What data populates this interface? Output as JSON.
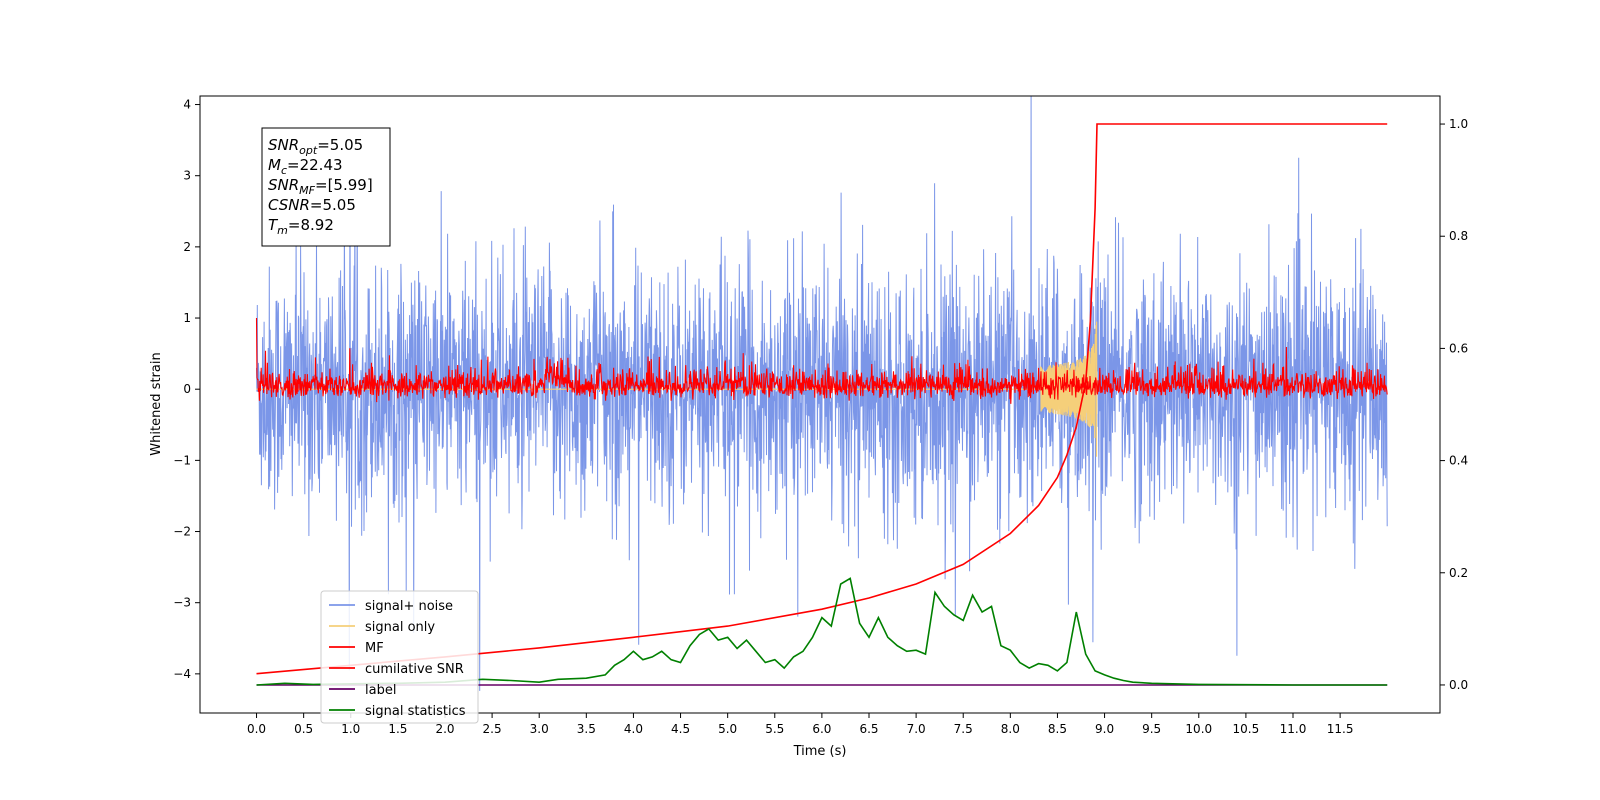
{
  "chart_data": {
    "type": "line",
    "xlabel": "Time (s)",
    "ylabel": "Whitened strain",
    "xlim": [
      -0.6,
      12.56
    ],
    "ylim": [
      -4.55,
      4.12
    ],
    "y2lim": [
      -0.05,
      1.05
    ],
    "x_ticks": [
      0.0,
      0.5,
      1.0,
      1.5,
      2.0,
      2.5,
      3.0,
      3.5,
      4.0,
      4.5,
      5.0,
      5.5,
      6.0,
      6.5,
      7.0,
      7.5,
      8.0,
      8.5,
      9.0,
      9.5,
      10.0,
      10.5,
      11.0,
      11.5
    ],
    "x_tick_labels": [
      "0.0",
      "0.5",
      "1.0",
      "1.5",
      "2.0",
      "2.5",
      "3.0",
      "3.5",
      "4.0",
      "4.5",
      "5.0",
      "5.5",
      "6.0",
      "6.5",
      "7.0",
      "7.5",
      "8.0",
      "8.5",
      "9.0",
      "9.5",
      "10.0",
      "10.5",
      "11.0",
      "11.5"
    ],
    "y_ticks": [
      4,
      3,
      2,
      1,
      0,
      -1,
      -2,
      -3,
      -4
    ],
    "y_tick_labels": [
      "4",
      "3",
      "2",
      "1",
      "0",
      "−1",
      "−2",
      "−3",
      "−4"
    ],
    "y2_ticks": [
      1.0,
      0.8,
      0.6,
      0.4,
      0.2,
      0.0
    ],
    "y2_tick_labels": [
      "1.0",
      "0.8",
      "0.6",
      "0.4",
      "0.2",
      "0.0"
    ],
    "grid": false,
    "legend_position": "lower-left",
    "info_box": {
      "lines": [
        {
          "sym": "SNR",
          "sub": "opt",
          "text": "=5.05"
        },
        {
          "sym": "M",
          "sub": "c",
          "text": "=22.43"
        },
        {
          "sym": "SNR",
          "sub": "MF",
          "text": "=[5.99]"
        },
        {
          "sym": "CSNR",
          "sub": "",
          "text": "=5.05"
        },
        {
          "sym": "T",
          "sub": "m",
          "text": "=8.92"
        }
      ]
    },
    "series": [
      {
        "name": "signal+ noise",
        "color": "#7b96e8",
        "axis": "left",
        "style": "noise",
        "amplitude_sigma": 0.85,
        "x_range": [
          0.0,
          12.0
        ]
      },
      {
        "name": "signal only",
        "color": "#f5cf7a",
        "axis": "left",
        "style": "chirp",
        "peak_time": 8.92,
        "peak_amplitude": 0.9
      },
      {
        "name": "MF",
        "color": "#ff0000",
        "axis": "left",
        "style": "noise",
        "amplitude_sigma": 0.12,
        "x_range": [
          0.0,
          12.0
        ]
      },
      {
        "name": "cumilative SNR",
        "color": "#ff0000",
        "axis": "right",
        "x": [
          0.0,
          1.0,
          2.0,
          3.0,
          4.0,
          5.0,
          6.0,
          6.5,
          7.0,
          7.5,
          8.0,
          8.3,
          8.5,
          8.6,
          8.7,
          8.8,
          8.85,
          8.9,
          8.92,
          12.0
        ],
        "values": [
          0.02,
          0.035,
          0.05,
          0.066,
          0.085,
          0.105,
          0.135,
          0.155,
          0.18,
          0.215,
          0.27,
          0.32,
          0.37,
          0.41,
          0.46,
          0.54,
          0.65,
          0.85,
          1.0,
          1.0
        ]
      },
      {
        "name": "label",
        "color": "#660066",
        "axis": "right",
        "x": [
          0.0,
          12.0
        ],
        "values": [
          0.0,
          0.0
        ]
      },
      {
        "name": "signal statistics",
        "color": "#008000",
        "axis": "right",
        "x": [
          0.0,
          0.3,
          0.6,
          1.0,
          1.5,
          2.0,
          2.4,
          2.7,
          3.0,
          3.2,
          3.5,
          3.7,
          3.8,
          3.9,
          4.0,
          4.1,
          4.2,
          4.3,
          4.4,
          4.5,
          4.6,
          4.7,
          4.8,
          4.9,
          5.0,
          5.1,
          5.2,
          5.3,
          5.4,
          5.5,
          5.6,
          5.7,
          5.8,
          5.9,
          6.0,
          6.1,
          6.2,
          6.3,
          6.4,
          6.5,
          6.6,
          6.7,
          6.8,
          6.9,
          7.0,
          7.1,
          7.2,
          7.3,
          7.4,
          7.5,
          7.6,
          7.7,
          7.8,
          7.9,
          8.0,
          8.1,
          8.2,
          8.3,
          8.4,
          8.5,
          8.6,
          8.7,
          8.8,
          8.9,
          9.0,
          9.1,
          9.2,
          9.3,
          9.5,
          10.0,
          11.0,
          12.0
        ],
        "values": [
          0.0,
          0.003,
          0.001,
          0.002,
          0.003,
          0.005,
          0.01,
          0.008,
          0.005,
          0.01,
          0.012,
          0.018,
          0.035,
          0.045,
          0.06,
          0.045,
          0.05,
          0.06,
          0.045,
          0.04,
          0.07,
          0.09,
          0.1,
          0.08,
          0.085,
          0.065,
          0.08,
          0.06,
          0.04,
          0.045,
          0.03,
          0.05,
          0.06,
          0.085,
          0.12,
          0.105,
          0.18,
          0.19,
          0.11,
          0.085,
          0.12,
          0.085,
          0.07,
          0.06,
          0.062,
          0.055,
          0.165,
          0.14,
          0.125,
          0.115,
          0.16,
          0.13,
          0.14,
          0.07,
          0.062,
          0.04,
          0.03,
          0.038,
          0.035,
          0.025,
          0.04,
          0.13,
          0.055,
          0.025,
          0.018,
          0.012,
          0.008,
          0.005,
          0.003,
          0.001,
          0.0,
          0.0
        ]
      }
    ]
  }
}
